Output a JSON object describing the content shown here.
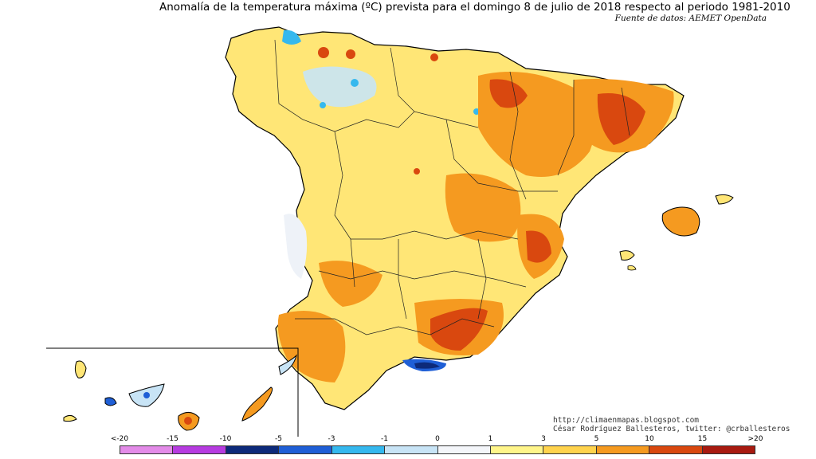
{
  "header": {
    "title": "Anomalía de la temperatura máxima (ºC) prevista para el domingo 8 de julio de 2018 respecto al periodo 1981-2010",
    "source": "Fuente de datos: AEMET OpenData"
  },
  "credits": {
    "url": "http://climaenmapas.blogspot.com",
    "author": "César Rodríguez Ballesteros, twitter: @crballesteros"
  },
  "legend": {
    "ticks": [
      "<-20",
      "-15",
      "-10",
      "-5",
      "-3",
      "-1",
      "0",
      "1",
      "3",
      "5",
      "10",
      "15",
      ">20"
    ],
    "colors": [
      "#e38be8",
      "#b63be0",
      "#0d2a7a",
      "#1f5fd6",
      "#35b8ee",
      "#c8e4f6",
      "#f4f6fa",
      "#fff58a",
      "#ffd34d",
      "#f59a20",
      "#d9480f",
      "#a81a10",
      "#5c2a10"
    ]
  }
}
